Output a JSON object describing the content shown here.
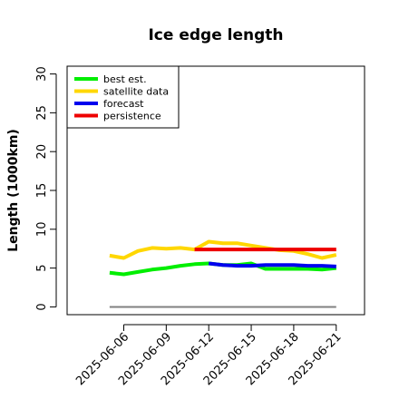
{
  "chart_data": {
    "type": "line",
    "title": "Ice edge length",
    "ylabel": "Length (1000km)",
    "xlabel": "",
    "ylim": [
      -1,
      31
    ],
    "yticks": [
      0,
      5,
      10,
      15,
      20,
      25,
      30
    ],
    "xticks": [
      "2025-06-06",
      "2025-06-09",
      "2025-06-12",
      "2025-06-15",
      "2025-06-18",
      "2025-06-21"
    ],
    "highlight_tick": "2025-06-12",
    "highlight_color": "#228B22",
    "legend_position": "top-left",
    "grid": false,
    "baseline": {
      "value": 0,
      "from": "2025-06-05",
      "to": "2025-06-21",
      "color": "#808080"
    },
    "series": [
      {
        "name": "best est.",
        "color": "#00EE00",
        "x": [
          "2025-06-05",
          "2025-06-06",
          "2025-06-07",
          "2025-06-08",
          "2025-06-09",
          "2025-06-10",
          "2025-06-11",
          "2025-06-12",
          "2025-06-13",
          "2025-06-14",
          "2025-06-15",
          "2025-06-16",
          "2025-06-17",
          "2025-06-18",
          "2025-06-19",
          "2025-06-20",
          "2025-06-21"
        ],
        "values": [
          4.4,
          4.2,
          4.5,
          4.8,
          5.0,
          5.3,
          5.5,
          5.6,
          5.4,
          5.4,
          5.6,
          4.9,
          4.9,
          4.9,
          4.9,
          4.8,
          5.0
        ]
      },
      {
        "name": "satellite data",
        "color": "#FFD700",
        "x": [
          "2025-06-05",
          "2025-06-06",
          "2025-06-07",
          "2025-06-08",
          "2025-06-09",
          "2025-06-10",
          "2025-06-11",
          "2025-06-12",
          "2025-06-13",
          "2025-06-14",
          "2025-06-15",
          "2025-06-16",
          "2025-06-17",
          "2025-06-18",
          "2025-06-19",
          "2025-06-20",
          "2025-06-21"
        ],
        "values": [
          6.6,
          6.3,
          7.2,
          7.6,
          7.5,
          7.6,
          7.4,
          8.4,
          8.2,
          8.2,
          7.9,
          7.6,
          7.3,
          7.2,
          6.8,
          6.3,
          6.7
        ]
      },
      {
        "name": "forecast",
        "color": "#0000EE",
        "x": [
          "2025-06-12",
          "2025-06-13",
          "2025-06-14",
          "2025-06-15",
          "2025-06-16",
          "2025-06-17",
          "2025-06-18",
          "2025-06-19",
          "2025-06-20",
          "2025-06-21"
        ],
        "values": [
          5.6,
          5.4,
          5.3,
          5.3,
          5.4,
          5.4,
          5.4,
          5.3,
          5.3,
          5.2
        ]
      },
      {
        "name": "persistence",
        "color": "#EE0000",
        "x": [
          "2025-06-11",
          "2025-06-21"
        ],
        "values": [
          7.4,
          7.4
        ]
      }
    ]
  }
}
